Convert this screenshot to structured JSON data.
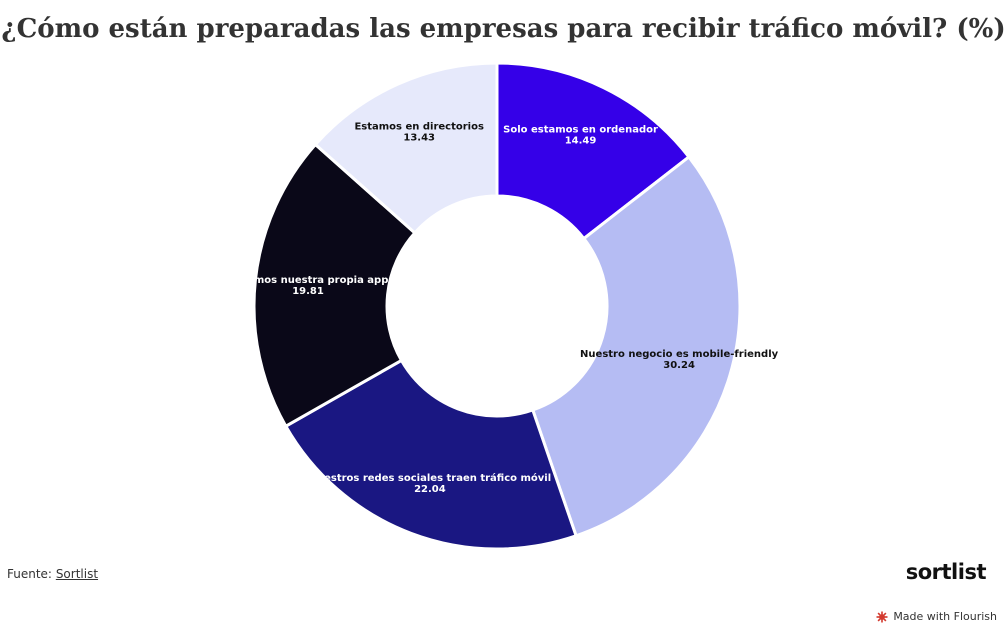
{
  "title": "¿Cómo están preparadas las empresas para recibir tráfico móvil? (%)",
  "source": {
    "prefix": "Fuente:",
    "link_text": "Sortlist"
  },
  "brand_logo": "sortlist",
  "flourish_badge": {
    "text": "Made with Flourish",
    "icon": "flourish-star-icon",
    "icon_color": "#d33a2f"
  },
  "chart_data": {
    "type": "pie",
    "style": "donut",
    "title": "¿Cómo están preparadas las empresas para recibir tráfico móvil? (%)",
    "start": "top, clockwise",
    "slices": [
      {
        "label": "Solo estamos en ordenador",
        "value": 14.49,
        "color": "#3500e8",
        "text_color": "#ffffff"
      },
      {
        "label": "Nuestro negocio es mobile-friendly",
        "value": 30.24,
        "color": "#b5bcf3",
        "text_color": "#111111"
      },
      {
        "label": "Nuestros redes sociales traen tráfico móvil",
        "value": 22.04,
        "color": "#1a1782",
        "text_color": "#ffffff"
      },
      {
        "label": "Tenemos nuestra propia app",
        "value": 19.81,
        "color": "#0a0818",
        "text_color": "#ffffff"
      },
      {
        "label": "Estamos en directorios",
        "value": 13.43,
        "color": "#e6e9fb",
        "text_color": "#111111"
      }
    ]
  }
}
